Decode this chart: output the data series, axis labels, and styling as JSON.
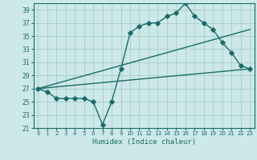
{
  "xlabel": "Humidex (Indice chaleur)",
  "background_color": "#cce8e8",
  "grid_color": "#aacccc",
  "line_color": "#1a6b6b",
  "xlim": [
    -0.5,
    23.5
  ],
  "ylim": [
    21,
    40
  ],
  "yticks": [
    21,
    23,
    25,
    27,
    29,
    31,
    33,
    35,
    37,
    39
  ],
  "xticks": [
    0,
    1,
    2,
    3,
    4,
    5,
    6,
    7,
    8,
    9,
    10,
    11,
    12,
    13,
    14,
    15,
    16,
    17,
    18,
    19,
    20,
    21,
    22,
    23
  ],
  "line1_x": [
    0,
    1,
    2,
    3,
    4,
    5,
    6,
    7,
    8,
    9,
    10,
    11,
    12,
    13,
    14,
    15,
    16,
    17,
    18,
    19,
    20,
    21,
    22,
    23
  ],
  "line1_y": [
    27,
    26.5,
    25.5,
    25.5,
    25.5,
    25.5,
    25,
    21.5,
    25,
    30,
    35.5,
    36.5,
    37,
    37,
    38,
    38.5,
    40,
    38,
    37,
    36,
    34,
    32.5,
    30.5,
    30
  ],
  "line2_x": [
    0,
    23
  ],
  "line2_y": [
    27,
    30
  ],
  "line3_x": [
    0,
    23
  ],
  "line3_y": [
    27,
    36
  ]
}
